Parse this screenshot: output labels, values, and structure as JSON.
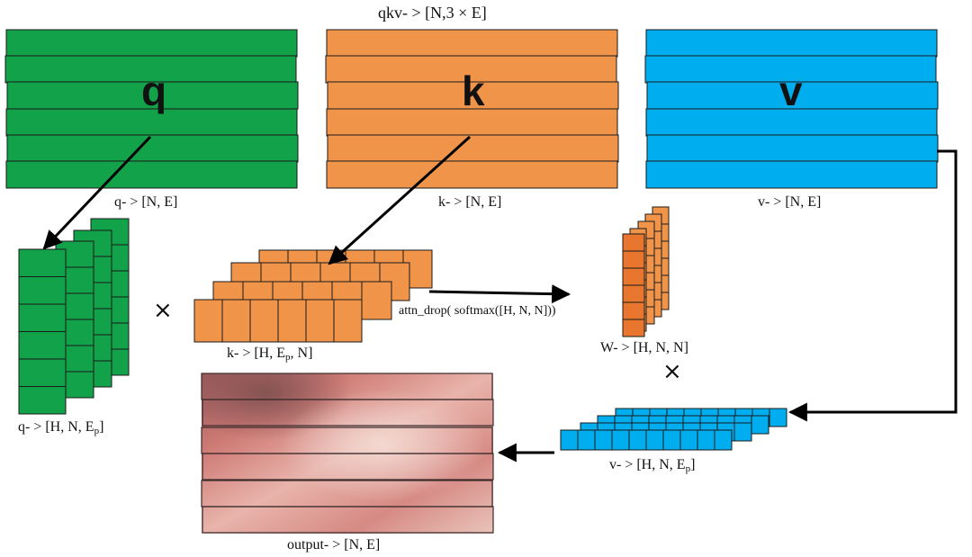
{
  "header": {
    "title": "qkv- > [N,3 × E]"
  },
  "blocks": {
    "q": {
      "letter": "q",
      "label": "q- > [N, E]",
      "color": "#12a24a"
    },
    "k": {
      "letter": "k",
      "label": "k- > [N, E]",
      "color": "#f0944a"
    },
    "v": {
      "letter": "v",
      "label": "v- > [N, E]",
      "color": "#00aeef"
    }
  },
  "heads": {
    "q_label": "q- > [H, N, E",
    "q_sub": "p",
    "q_end": "]",
    "k_label": "k- > [H, E",
    "k_sub": "p",
    "k_end": ", N]",
    "v_label": "v- > [H, N, E",
    "v_sub": "p",
    "v_end": "]"
  },
  "ops": {
    "multiply_symbol": "×",
    "attention": "attn_drop( softmax([H, N, N]))",
    "weights_label": "W- > [H, N, N]",
    "output_label": "output- > [N, E]"
  },
  "colors": {
    "green": "#12a24a",
    "orange": "#f0944a",
    "dark_orange": "#e8762f",
    "blue": "#00aeef",
    "output_base": "#d88f89"
  }
}
